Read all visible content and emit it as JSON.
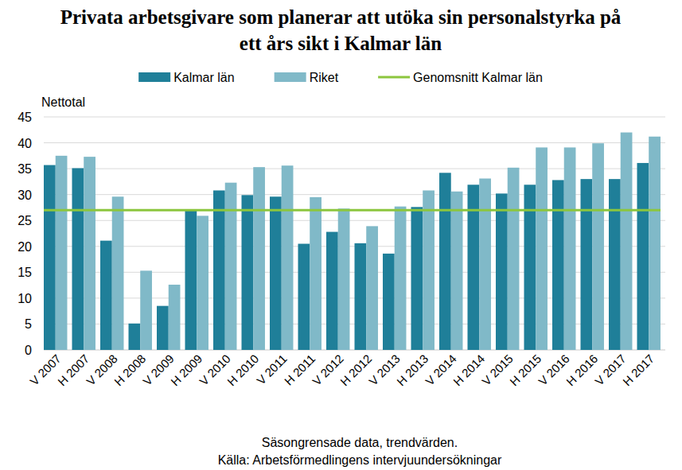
{
  "chart_data": {
    "type": "bar",
    "title": "Privata arbetsgivare som planerar att utöka sin personalstyrka på ett års sikt i Kalmar län",
    "y_label": "Nettotal",
    "x_label": "Säsongrensade data, trendvärden.",
    "source": "Källa: Arbetsförmedlingens intervjuundersökningar",
    "categories": [
      "V 2007",
      "H 2007",
      "V 2008",
      "H 2008",
      "V 2009",
      "H 2009",
      "V 2010",
      "H 2010",
      "V 2011",
      "H 2011",
      "V 2012",
      "H 2012",
      "V 2013",
      "H 2013",
      "V 2014",
      "H 2014",
      "V 2015",
      "H 2015",
      "V 2016",
      "H 2016",
      "V 2017",
      "H 2017"
    ],
    "series": [
      {
        "name": "Kalmar län",
        "color": "#1f7f99",
        "values": [
          35.7,
          35.1,
          21.1,
          5.1,
          8.5,
          26.9,
          30.8,
          29.9,
          29.6,
          20.5,
          22.8,
          20.6,
          18.6,
          27.6,
          34.2,
          31.9,
          30.2,
          31.9,
          32.8,
          33.0,
          33.0,
          36.1
        ]
      },
      {
        "name": "Riket",
        "color": "#80b9c8",
        "values": [
          37.5,
          37.3,
          29.6,
          15.3,
          12.6,
          25.9,
          32.3,
          35.3,
          35.6,
          29.5,
          27.3,
          23.9,
          27.7,
          30.8,
          30.6,
          33.1,
          35.2,
          39.1,
          39.1,
          39.9,
          42.0,
          41.2
        ]
      },
      {
        "name": "Genomsnitt Kalmar län",
        "type": "line",
        "color": "#8cc63e",
        "values": [
          27,
          27,
          27,
          27,
          27,
          27,
          27,
          27,
          27,
          27,
          27,
          27,
          27,
          27,
          27,
          27,
          27,
          27,
          27,
          27,
          27,
          27
        ]
      }
    ],
    "ylim": [
      0,
      45
    ],
    "yticks": [
      0,
      5,
      10,
      15,
      20,
      25,
      30,
      35,
      40,
      45
    ],
    "grid": true,
    "legend": "top"
  }
}
